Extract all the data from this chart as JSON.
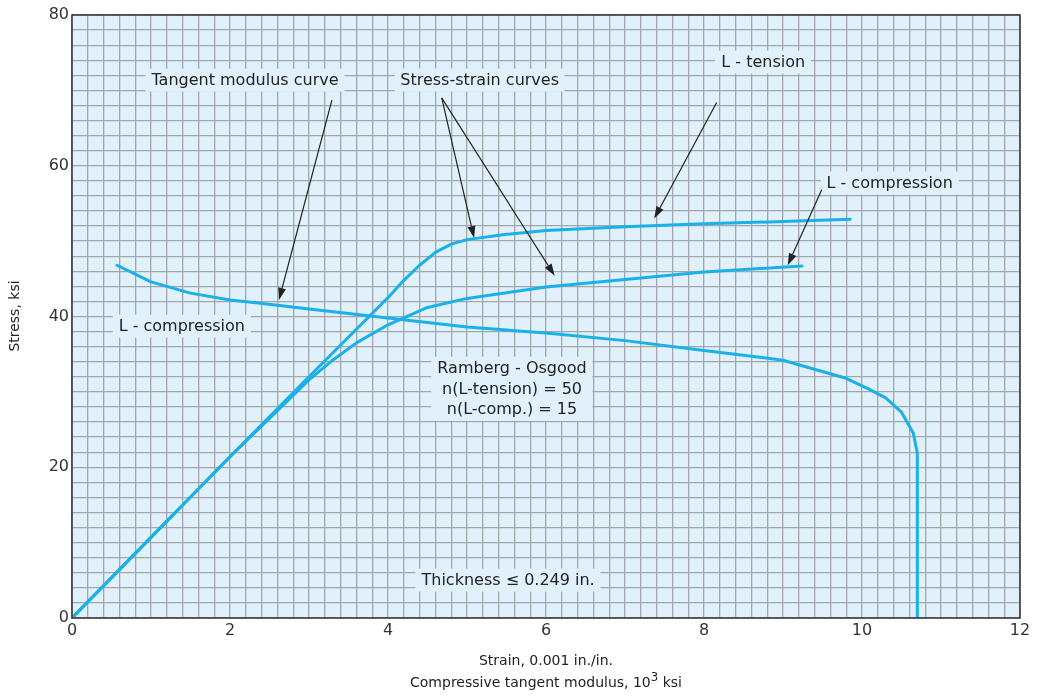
{
  "chart_data": {
    "type": "line",
    "xlabel": "Strain, 0.001 in./in.\nCompressive tangent modulus, 10$^{3}$ ksi",
    "ylabel": "Stress, ksi",
    "xlim": [
      0,
      12
    ],
    "ylim": [
      0,
      80
    ],
    "xticks": [
      0,
      {
        "value": 0.2,
        "label": null
      },
      {
        "value": 0.4,
        "label": null
      },
      {
        "value": 0.6,
        "label": null
      },
      {
        "value": 0.8,
        "label": null
      },
      {
        "value": 1,
        "label": null
      },
      {
        "value": 1.2,
        "label": null
      },
      {
        "value": 1.4,
        "label": null
      },
      {
        "value": 1.6,
        "label": null
      },
      {
        "value": 1.8,
        "label": null
      },
      2,
      {
        "value": 2.2,
        "label": null
      },
      {
        "value": 2.4,
        "label": null
      },
      {
        "value": 2.6,
        "label": null
      },
      {
        "value": 2.8,
        "label": null
      },
      {
        "value": 3,
        "label": null
      },
      {
        "value": 3.2,
        "label": null
      },
      {
        "value": 3.4,
        "label": null
      },
      {
        "value": 3.6,
        "label": null
      },
      {
        "value": 3.8,
        "label": null
      },
      4,
      {
        "value": 4.2,
        "label": null
      },
      {
        "value": 4.4,
        "label": null
      },
      {
        "value": 4.6,
        "label": null
      },
      {
        "value": 4.8,
        "label": null
      },
      {
        "value": 5,
        "label": null
      },
      {
        "value": 5.2,
        "label": null
      },
      {
        "value": 5.4,
        "label": null
      },
      {
        "value": 5.6,
        "label": null
      },
      {
        "value": 5.8,
        "label": null
      },
      6,
      {
        "value": 6.2,
        "label": null
      },
      {
        "value": 6.4,
        "label": null
      },
      {
        "value": 6.6,
        "label": null
      },
      {
        "value": 6.8,
        "label": null
      },
      {
        "value": 7,
        "label": null
      },
      {
        "value": 7.2,
        "label": null
      },
      {
        "value": 7.4,
        "label": null
      },
      {
        "value": 7.6,
        "label": null
      },
      {
        "value": 7.8,
        "label": null
      },
      8,
      {
        "value": 8.2,
        "label": null
      },
      {
        "value": 8.4,
        "label": null
      },
      {
        "value": 8.6,
        "label": null
      },
      {
        "value": 8.8,
        "label": null
      },
      {
        "value": 9,
        "label": null
      },
      {
        "value": 9.2,
        "label": null
      },
      {
        "value": 9.4,
        "label": null
      },
      {
        "value": 9.6,
        "label": null
      },
      {
        "value": 9.8,
        "label": null
      },
      10,
      {
        "value": 10.2,
        "label": null
      },
      {
        "value": 10.4,
        "label": null
      },
      {
        "value": 10.6,
        "label": null
      },
      {
        "value": 10.8,
        "label": null
      },
      {
        "value": 11,
        "label": null
      },
      {
        "value": 11.2,
        "label": null
      },
      {
        "value": 11.4,
        "label": null
      },
      {
        "value": 11.6,
        "label": null
      },
      {
        "value": 11.8,
        "label": null
      },
      12
    ],
    "yticks": [
      0,
      {
        "value": 2,
        "label": null
      },
      {
        "value": 4,
        "label": null
      },
      {
        "value": 6,
        "label": null
      },
      {
        "value": 8,
        "label": null
      },
      {
        "value": 10,
        "label": null
      },
      {
        "value": 12,
        "label": null
      },
      {
        "value": 14,
        "label": null
      },
      {
        "value": 16,
        "label": null
      },
      {
        "value": 18,
        "label": null
      },
      20,
      {
        "value": 22,
        "label": null
      },
      {
        "value": 24,
        "label": null
      },
      {
        "value": 26,
        "label": null
      },
      {
        "value": 28,
        "label": null
      },
      {
        "value": 30,
        "label": null
      },
      {
        "value": 32,
        "label": null
      },
      {
        "value": 34,
        "label": null
      },
      {
        "value": 36,
        "label": null
      },
      {
        "value": 38,
        "label": null
      },
      40,
      {
        "value": 42,
        "label": null
      },
      {
        "value": 44,
        "label": null
      },
      {
        "value": 46,
        "label": null
      },
      {
        "value": 48,
        "label": null
      },
      {
        "value": 50,
        "label": null
      },
      {
        "value": 52,
        "label": null
      },
      {
        "value": 54,
        "label": null
      },
      {
        "value": 56,
        "label": null
      },
      {
        "value": 58,
        "label": null
      },
      60,
      {
        "value": 62,
        "label": null
      },
      {
        "value": 64,
        "label": null
      },
      {
        "value": 66,
        "label": null
      },
      {
        "value": 68,
        "label": null
      },
      {
        "value": 70,
        "label": null
      },
      {
        "value": 72,
        "label": null
      },
      {
        "value": 74,
        "label": null
      },
      {
        "value": 76,
        "label": null
      },
      {
        "value": 78,
        "label": null
      },
      80
    ],
    "grid": true,
    "legend": false,
    "marker": "none",
    "line_style": "solid",
    "series": [
      {
        "color": "#1ab0e8",
        "x": [
          0,
          1,
          2,
          3,
          4,
          4.2,
          4.4,
          4.6,
          4.8,
          5,
          5.5,
          6,
          7,
          8,
          9,
          9.85
        ],
        "values": [
          0,
          10.7,
          21.4,
          32,
          42.5,
          44.8,
          46.8,
          48.5,
          49.6,
          50.2,
          50.9,
          51.4,
          51.9,
          52.3,
          52.6,
          52.9
        ]
      },
      {
        "color": "#1ab0e8",
        "x": [
          0,
          1,
          2,
          3,
          3.3,
          3.6,
          4,
          4.5,
          5,
          6,
          7,
          8,
          9.24
        ],
        "values": [
          0,
          10.7,
          21.4,
          31.6,
          34.2,
          36.5,
          38.9,
          41.2,
          42.4,
          43.9,
          44.9,
          45.9,
          46.7
        ]
      },
      {
        "color": "#1ab0e8",
        "x": [
          0.57,
          1,
          1.5,
          2,
          2.6,
          3,
          4,
          5,
          6,
          7,
          8,
          9,
          9.43,
          9.8,
          10.1,
          10.3,
          10.5,
          10.65,
          10.7,
          10.7
        ],
        "values": [
          46.8,
          44.6,
          43.1,
          42.2,
          41.5,
          41,
          39.8,
          38.6,
          37.8,
          36.8,
          35.5,
          34.2,
          32.9,
          31.8,
          30.3,
          29.2,
          27.3,
          24.5,
          21.9,
          0
        ]
      }
    ],
    "annotations": [
      "Tangent modulus curve",
      "Stress-strain curves",
      "L - tension",
      "L - compression",
      "L - compression",
      "Ramberg - Osgood\nn(L-tension) = 50\nn(L-comp.) = 15",
      "Thickness ≤ 0.249 in."
    ]
  }
}
